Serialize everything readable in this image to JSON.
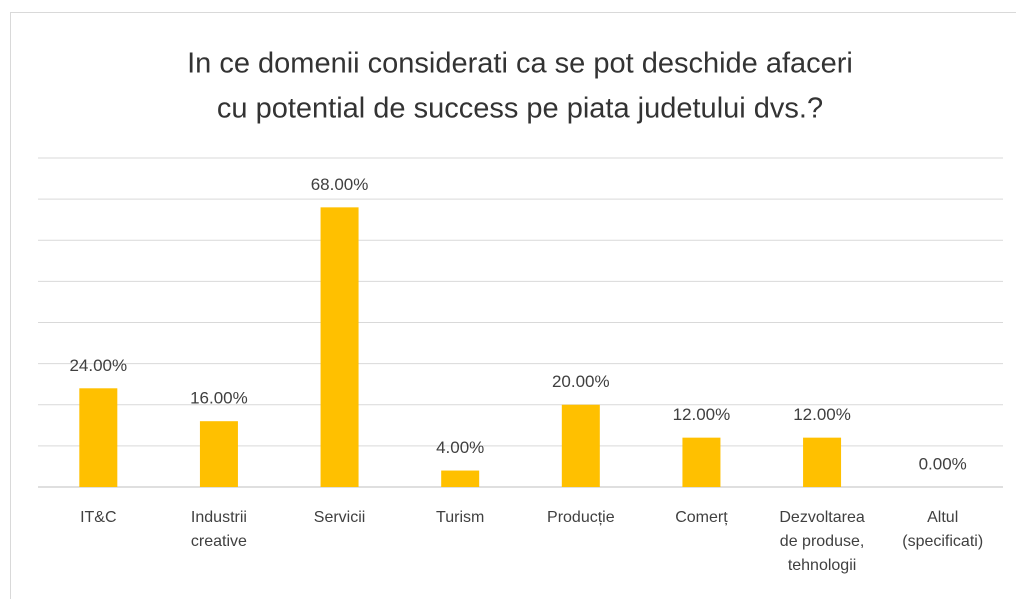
{
  "chart_data": {
    "type": "bar",
    "title": [
      "In ce domenii considerati ca se pot deschide afaceri",
      "cu potential de success pe piata judetului dvs.?"
    ],
    "categories": [
      "IT&C",
      "Industrii\ncreative",
      "Servicii",
      "Turism",
      "Producție",
      "Comerț",
      "Dezvoltarea\nde produse,\ntehnologii",
      "Altul\n(specificati)"
    ],
    "values": [
      24,
      16,
      68,
      4,
      20,
      12,
      12,
      0
    ],
    "value_labels": [
      "24.00%",
      "16.00%",
      "68.00%",
      "4.00%",
      "20.00%",
      "12.00%",
      "12.00%",
      "0.00%"
    ],
    "color": "#ffc000",
    "ylim": [
      0,
      80
    ],
    "yticks": [
      0,
      10,
      20,
      30,
      40,
      50,
      60,
      70,
      80
    ],
    "grid": true
  }
}
